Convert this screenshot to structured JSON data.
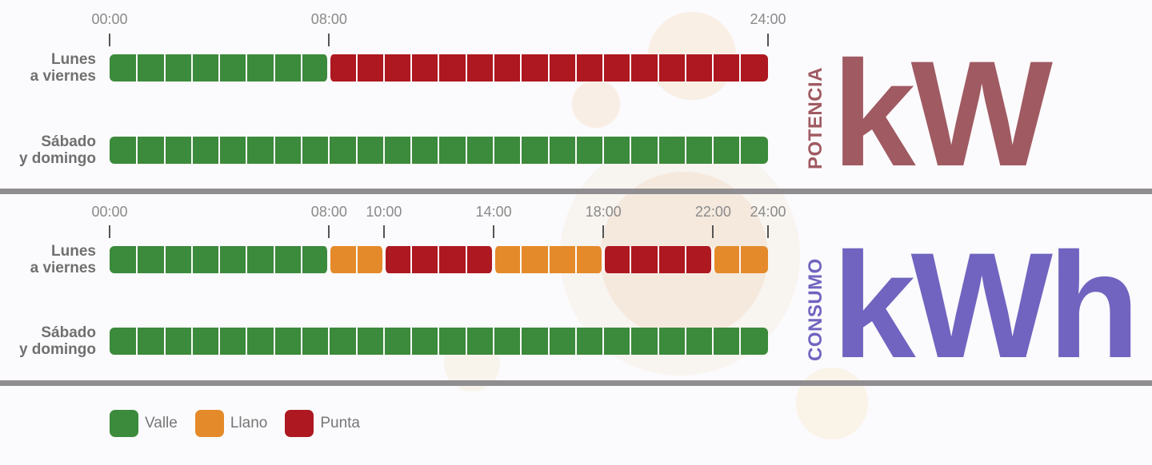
{
  "colors": {
    "valle": "#3c8a3c",
    "llano": "#e48a2a",
    "punta": "#ae1820",
    "potencia": "#a05a62",
    "consumo": "#7064c0"
  },
  "labels": {
    "weekday": [
      "Lunes",
      "a viernes"
    ],
    "weekend": [
      "Sábado",
      "y domingo"
    ]
  },
  "potencia": {
    "side_label": "POTENCIA",
    "unit": "kW",
    "ticks": [
      "00:00",
      "08:00",
      "24:00"
    ]
  },
  "consumo": {
    "side_label": "CONSUMO",
    "unit": "kWh",
    "ticks": [
      "00:00",
      "08:00",
      "10:00",
      "14:00",
      "18:00",
      "22:00",
      "24:00"
    ]
  },
  "legend": [
    {
      "key": "valle",
      "label": "Valle"
    },
    {
      "key": "llano",
      "label": "Llano"
    },
    {
      "key": "punta",
      "label": "Punta"
    }
  ],
  "chart_data": [
    {
      "type": "bar",
      "title": "",
      "xlabel": "",
      "ylabel": "",
      "xlim": [
        0,
        24
      ],
      "unit": "kW",
      "categories": [
        "Lunes a viernes",
        "Sábado y domingo"
      ],
      "series": [
        {
          "category": "Lunes a viernes",
          "periods": [
            {
              "from": 0,
              "to": 8,
              "tariff": "Valle"
            },
            {
              "from": 8,
              "to": 24,
              "tariff": "Punta"
            }
          ]
        },
        {
          "category": "Sábado y domingo",
          "periods": [
            {
              "from": 0,
              "to": 24,
              "tariff": "Valle"
            }
          ]
        }
      ]
    },
    {
      "type": "bar",
      "title": "",
      "xlabel": "",
      "ylabel": "",
      "xlim": [
        0,
        24
      ],
      "unit": "kWh",
      "categories": [
        "Lunes a viernes",
        "Sábado y domingo"
      ],
      "series": [
        {
          "category": "Lunes a viernes",
          "periods": [
            {
              "from": 0,
              "to": 8,
              "tariff": "Valle"
            },
            {
              "from": 8,
              "to": 10,
              "tariff": "Llano"
            },
            {
              "from": 10,
              "to": 14,
              "tariff": "Punta"
            },
            {
              "from": 14,
              "to": 18,
              "tariff": "Llano"
            },
            {
              "from": 18,
              "to": 22,
              "tariff": "Punta"
            },
            {
              "from": 22,
              "to": 24,
              "tariff": "Llano"
            }
          ]
        },
        {
          "category": "Sábado y domingo",
          "periods": [
            {
              "from": 0,
              "to": 24,
              "tariff": "Valle"
            }
          ]
        }
      ]
    }
  ]
}
